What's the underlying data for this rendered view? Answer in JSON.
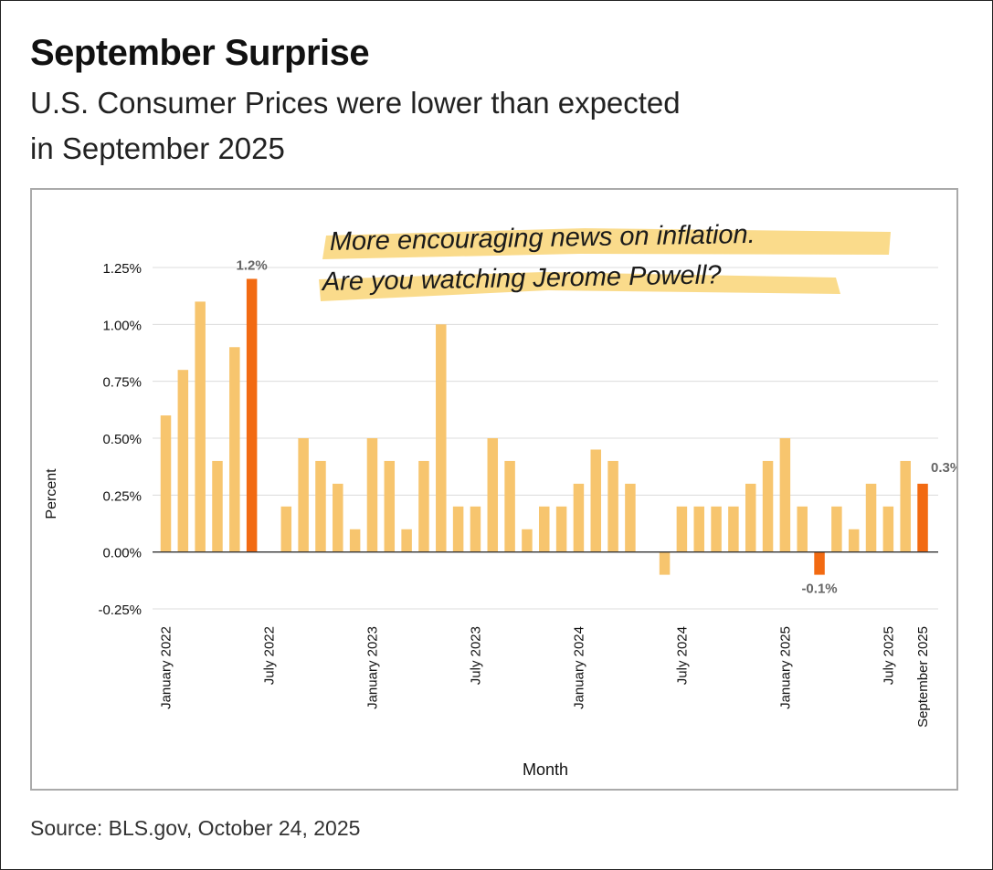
{
  "header": {
    "title": "September Surprise",
    "subtitle": "U.S. Consumer Prices were lower than expected in September 2025"
  },
  "footer": {
    "source": "Source: BLS.gov, October 24, 2025"
  },
  "annotation": {
    "line1": "More encouraging news on inflation.",
    "line2": "Are you watching Jerome Powell?"
  },
  "colors": {
    "bar": "#F7C56E",
    "highlight": "#F26A12",
    "highlighter": "#F9D77E"
  },
  "chart_data": {
    "type": "bar",
    "xlabel": "Month",
    "ylabel": "Percent",
    "ylim": [
      -0.25,
      1.25
    ],
    "yticks": [
      "1.25%",
      "1.00%",
      "0.75%",
      "0.50%",
      "0.25%",
      "0.00%",
      "-0.25%"
    ],
    "grid": true,
    "categories": [
      "Jan 2022",
      "Feb 2022",
      "Mar 2022",
      "Apr 2022",
      "May 2022",
      "Jun 2022",
      "Jul 2022",
      "Aug 2022",
      "Sep 2022",
      "Oct 2022",
      "Nov 2022",
      "Dec 2022",
      "Jan 2023",
      "Feb 2023",
      "Mar 2023",
      "Apr 2023",
      "May 2023",
      "Jun 2023",
      "Jul 2023",
      "Aug 2023",
      "Sep 2023",
      "Oct 2023",
      "Nov 2023",
      "Dec 2023",
      "Jan 2024",
      "Feb 2024",
      "Mar 2024",
      "Apr 2024",
      "May 2024",
      "Jun 2024",
      "Jul 2024",
      "Aug 2024",
      "Sep 2024",
      "Oct 2024",
      "Nov 2024",
      "Dec 2024",
      "Jan 2025",
      "Feb 2025",
      "Mar 2025",
      "Apr 2025",
      "May 2025",
      "Jun 2025",
      "Jul 2025",
      "Aug 2025",
      "Sep 2025"
    ],
    "values": [
      0.6,
      0.8,
      1.1,
      0.4,
      0.9,
      1.2,
      0.0,
      0.2,
      0.5,
      0.4,
      0.3,
      0.1,
      0.5,
      0.4,
      0.1,
      0.4,
      1.0,
      0.2,
      0.2,
      0.5,
      0.4,
      0.1,
      0.2,
      0.2,
      0.3,
      0.45,
      0.4,
      0.3,
      0.0,
      -0.1,
      0.2,
      0.2,
      0.2,
      0.2,
      0.3,
      0.4,
      0.5,
      0.2,
      -0.1,
      0.2,
      0.1,
      0.3,
      0.2,
      0.4,
      0.3
    ],
    "highlighted_indices": [
      5,
      38,
      44
    ],
    "data_labels": [
      {
        "index": 5,
        "text": "1.2%"
      },
      {
        "index": 38,
        "text": "-0.1%"
      },
      {
        "index": 44,
        "text": "0.3%"
      }
    ],
    "x_tick_labels": [
      {
        "index": 0,
        "text": "January 2022"
      },
      {
        "index": 6,
        "text": "July 2022"
      },
      {
        "index": 12,
        "text": "January 2023"
      },
      {
        "index": 18,
        "text": "July 2023"
      },
      {
        "index": 24,
        "text": "January 2024"
      },
      {
        "index": 30,
        "text": "July 2024"
      },
      {
        "index": 36,
        "text": "January 2025"
      },
      {
        "index": 42,
        "text": "July 2025"
      },
      {
        "index": 44,
        "text": "September 2025"
      }
    ]
  }
}
